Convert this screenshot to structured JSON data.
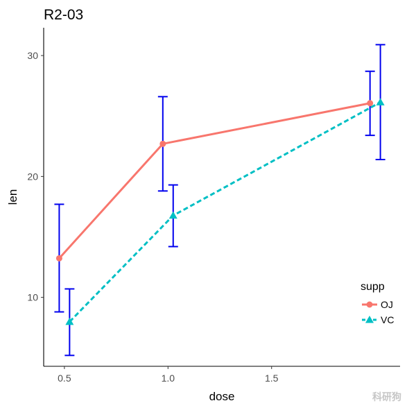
{
  "chart_data": {
    "type": "line",
    "title": "R2-03",
    "xlabel": "dose",
    "ylabel": "len",
    "x": [
      0.5,
      1.0,
      2.0
    ],
    "x_ticks": [
      "0.5",
      "1.0",
      "1.5"
    ],
    "x_tick_values": [
      0.5,
      1.0,
      1.5
    ],
    "y_ticks": [
      "10",
      "20",
      "30"
    ],
    "y_tick_values": [
      10,
      20,
      30
    ],
    "xlim": [
      0.4,
      2.12
    ],
    "ylim": [
      4.3,
      32.3
    ],
    "legend": {
      "title": "supp",
      "placement": "right"
    },
    "error_bar_color": "#0000ee",
    "series": [
      {
        "name": "OJ",
        "color": "#f8766d",
        "linestyle": "solid",
        "marker": "circle",
        "x_offset": -0.025,
        "y": [
          13.23,
          22.7,
          26.06
        ],
        "ymin": [
          8.8,
          18.8,
          23.4
        ],
        "ymax": [
          17.7,
          26.6,
          28.7
        ]
      },
      {
        "name": "VC",
        "color": "#00bfc4",
        "linestyle": "dashed",
        "marker": "triangle",
        "x_offset": 0.025,
        "y": [
          7.98,
          16.77,
          26.14
        ],
        "ymin": [
          5.2,
          14.2,
          21.4
        ],
        "ymax": [
          10.7,
          19.3,
          30.9
        ]
      }
    ]
  },
  "watermark": "科研狗"
}
